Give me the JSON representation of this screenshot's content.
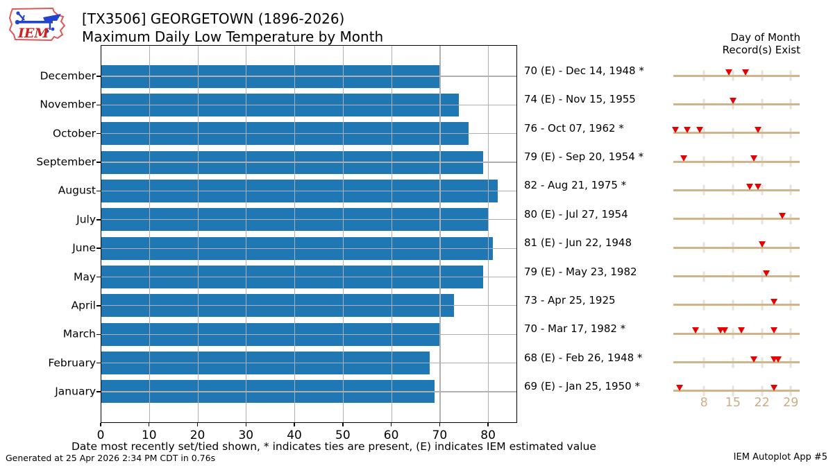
{
  "logo": {
    "text": "IEM"
  },
  "title": {
    "line1": "[TX3506] GEORGETOWN (1896-2026)",
    "line2": "Maximum Daily Low Temperature by Month"
  },
  "right_panel": {
    "header_line1": "Day of Month",
    "header_line2": "Record(s) Exist",
    "day_ticks": [
      8,
      15,
      22,
      29
    ]
  },
  "chart_data": {
    "type": "bar",
    "orientation": "horizontal",
    "title": "[TX3506] GEORGETOWN (1896-2026) — Maximum Daily Low Temperature by Month",
    "categories": [
      "December",
      "November",
      "October",
      "September",
      "August",
      "July",
      "June",
      "May",
      "April",
      "March",
      "February",
      "January"
    ],
    "values": [
      70,
      74,
      76,
      79,
      82,
      80,
      81,
      79,
      73,
      70,
      68,
      69
    ],
    "record_labels": [
      "70 (E) - Dec 14, 1948 *",
      "74 (E) - Nov 15, 1955",
      "76 - Oct 07, 1962 *",
      "79 (E) - Sep 20, 1954 *",
      "82 - Aug 21, 1975 *",
      "80 (E) - Jul 27, 1954",
      "81 (E) - Jun 22, 1948",
      "79 (E) - May 23, 1982",
      "73 - Apr 25, 1925",
      "70 - Mar 17, 1982 *",
      "68 (E) - Feb 26, 1948 *",
      "69 (E) - Jan 25, 1950 *"
    ],
    "record_days": [
      [
        14,
        18
      ],
      [
        15
      ],
      [
        1,
        4,
        7,
        21
      ],
      [
        3,
        20
      ],
      [
        19,
        21
      ],
      [
        27
      ],
      [
        22
      ],
      [
        23
      ],
      [
        25
      ],
      [
        6,
        12,
        13,
        17,
        25
      ],
      [
        20,
        25,
        26
      ],
      [
        2,
        25
      ]
    ],
    "xlabel": "",
    "ylabel": "",
    "xlim": [
      0,
      86
    ],
    "xticks": [
      0,
      10,
      20,
      30,
      40,
      50,
      60,
      70,
      80
    ],
    "grid": true,
    "legend_position": "none",
    "bar_color": "#1f77b4"
  },
  "caption": "Date most recently set/tied shown, * indicates ties are present, (E) indicates IEM estimated value",
  "footer": {
    "left": "Generated at 25 Apr 2026 2:34 PM CDT in 0.76s",
    "right": "IEM Autoplot App #5"
  },
  "colors": {
    "bar": "#1f77b4",
    "grid": "#b0b0b0",
    "timeline": "#d2b48c",
    "timeline_tick": "#e7e2d8",
    "marker": "#e60000",
    "day_label": "#c9ae86"
  }
}
